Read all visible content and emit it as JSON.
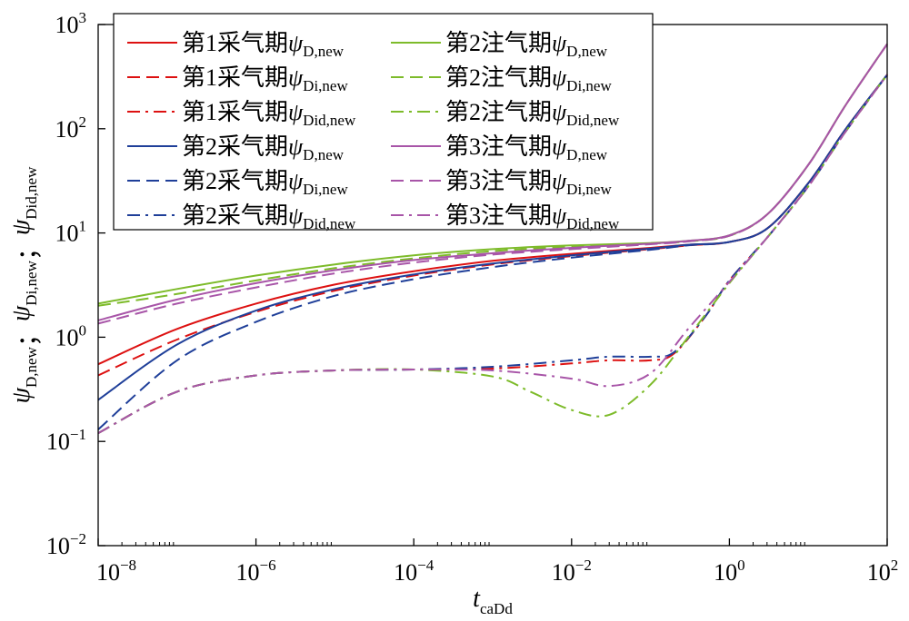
{
  "chart_data": {
    "type": "line",
    "x_scale": "log",
    "y_scale": "log",
    "xlim": [
      1e-08,
      100
    ],
    "ylim": [
      0.01,
      1000
    ],
    "xlabel": {
      "italic": "t",
      "sub": "caDd"
    },
    "ylabel": [
      {
        "italic": "ψ",
        "sub": "D,new"
      },
      {
        "sep": "；"
      },
      {
        "italic": "ψ",
        "sub": "Di,new"
      },
      {
        "sep": "；"
      },
      {
        "italic": "ψ",
        "sub": "Did,new"
      }
    ],
    "x_ticks": [
      {
        "base": "10",
        "exp": "−8"
      },
      {
        "base": "10",
        "exp": "−6"
      },
      {
        "base": "10",
        "exp": "−4"
      },
      {
        "base": "10",
        "exp": "−2"
      },
      {
        "base": "10",
        "exp": "0"
      },
      {
        "base": "10",
        "exp": "2"
      }
    ],
    "y_ticks": [
      {
        "base": "10",
        "exp": "−2"
      },
      {
        "base": "10",
        "exp": "−1"
      },
      {
        "base": "10",
        "exp": "0"
      },
      {
        "base": "10",
        "exp": "1"
      },
      {
        "base": "10",
        "exp": "2"
      },
      {
        "base": "10",
        "exp": "3"
      }
    ],
    "legend_position": "top-left",
    "grid": false,
    "series": [
      {
        "name": "第1采气期",
        "psi": "ψ",
        "sub": "D,new",
        "color": "#dd1111",
        "dash": "solid",
        "x": [
          1e-08,
          1e-07,
          1e-06,
          1e-05,
          0.0001,
          0.001,
          0.01,
          0.1,
          0.3,
          1,
          3,
          10,
          30,
          100
        ],
        "y": [
          0.55,
          1.2,
          2.1,
          3.2,
          4.3,
          5.4,
          6.3,
          7.2,
          7.7,
          8.2,
          11,
          30,
          100,
          330
        ]
      },
      {
        "name": "第1采气期",
        "psi": "ψ",
        "sub": "Di,new",
        "color": "#dd1111",
        "dash": "dash",
        "x": [
          1e-08,
          1e-07,
          1e-06,
          1e-05,
          0.0001,
          0.001,
          0.01,
          0.1,
          0.3,
          1,
          3,
          10,
          30,
          100
        ],
        "y": [
          0.43,
          0.95,
          1.75,
          2.8,
          3.9,
          5.0,
          6.0,
          7.0,
          7.6,
          8.2,
          11,
          30,
          100,
          330
        ]
      },
      {
        "name": "第1采气期",
        "psi": "ψ",
        "sub": "Did,new",
        "color": "#dd1111",
        "dash": "dashdot",
        "x": [
          1e-08,
          1e-07,
          1e-06,
          1e-05,
          0.0001,
          0.001,
          0.01,
          0.03,
          0.1,
          0.2,
          0.5,
          1,
          3,
          10,
          30,
          100
        ],
        "y": [
          0.12,
          0.3,
          0.43,
          0.48,
          0.49,
          0.5,
          0.56,
          0.6,
          0.6,
          0.7,
          1.6,
          3.5,
          9,
          28,
          95,
          330
        ]
      },
      {
        "name": "第2采气期",
        "psi": "ψ",
        "sub": "D,new",
        "color": "#1f3f99",
        "dash": "solid",
        "x": [
          1e-08,
          1e-07,
          1e-06,
          1e-05,
          0.0001,
          0.001,
          0.01,
          0.1,
          0.3,
          1,
          3,
          10,
          30,
          100
        ],
        "y": [
          0.25,
          0.85,
          1.8,
          2.9,
          4.0,
          5.1,
          6.1,
          7.1,
          7.7,
          8.2,
          11,
          30,
          100,
          330
        ]
      },
      {
        "name": "第2采气期",
        "psi": "ψ",
        "sub": "Di,new",
        "color": "#1f3f99",
        "dash": "dash",
        "x": [
          1e-08,
          1e-07,
          1e-06,
          1e-05,
          0.0001,
          0.001,
          0.01,
          0.1,
          0.3,
          1,
          3,
          10,
          30,
          100
        ],
        "y": [
          0.13,
          0.6,
          1.4,
          2.5,
          3.6,
          4.7,
          5.8,
          6.9,
          7.6,
          8.2,
          11,
          30,
          100,
          330
        ]
      },
      {
        "name": "第2采气期",
        "psi": "ψ",
        "sub": "Did,new",
        "color": "#1f3f99",
        "dash": "dashdot",
        "x": [
          1e-08,
          1e-07,
          1e-06,
          1e-05,
          0.0001,
          0.001,
          0.01,
          0.03,
          0.1,
          0.2,
          0.5,
          1,
          3,
          10,
          30,
          100
        ],
        "y": [
          0.12,
          0.3,
          0.43,
          0.48,
          0.49,
          0.52,
          0.6,
          0.65,
          0.65,
          0.72,
          1.6,
          3.5,
          9,
          28,
          95,
          330
        ]
      },
      {
        "name": "第2注气期",
        "psi": "ψ",
        "sub": "D,new",
        "color": "#7dbb2a",
        "dash": "solid",
        "x": [
          1e-08,
          1e-07,
          1e-06,
          1e-05,
          0.0001,
          0.001,
          0.01,
          0.1,
          0.3,
          1,
          3,
          10,
          30,
          100
        ],
        "y": [
          2.1,
          2.9,
          3.9,
          5.0,
          6.1,
          7.0,
          7.6,
          8.0,
          8.4,
          9.5,
          15,
          45,
          170,
          650
        ]
      },
      {
        "name": "第2注气期",
        "psi": "ψ",
        "sub": "Di,new",
        "color": "#7dbb2a",
        "dash": "dash",
        "x": [
          1e-08,
          1e-07,
          1e-06,
          1e-05,
          0.0001,
          0.001,
          0.01,
          0.1,
          0.3,
          1,
          3,
          10,
          30,
          100
        ],
        "y": [
          2.0,
          2.6,
          3.5,
          4.6,
          5.7,
          6.7,
          7.4,
          7.9,
          8.3,
          9.4,
          15,
          45,
          170,
          650
        ]
      },
      {
        "name": "第2注气期",
        "psi": "ψ",
        "sub": "Did,new",
        "color": "#7dbb2a",
        "dash": "dashdot",
        "x": [
          1e-08,
          1e-07,
          1e-06,
          1e-05,
          0.0001,
          0.001,
          0.003,
          0.01,
          0.03,
          0.1,
          0.3,
          1,
          3,
          10,
          30,
          100
        ],
        "y": [
          0.12,
          0.3,
          0.43,
          0.48,
          0.49,
          0.42,
          0.3,
          0.2,
          0.18,
          0.35,
          1.0,
          3.3,
          9,
          28,
          95,
          330
        ]
      },
      {
        "name": "第3注气期",
        "psi": "ψ",
        "sub": "D,new",
        "color": "#a855a8",
        "dash": "solid",
        "x": [
          1e-08,
          1e-07,
          1e-06,
          1e-05,
          0.0001,
          0.001,
          0.01,
          0.1,
          0.3,
          1,
          3,
          10,
          30,
          100
        ],
        "y": [
          1.45,
          2.3,
          3.3,
          4.4,
          5.5,
          6.4,
          7.2,
          7.9,
          8.4,
          9.5,
          15,
          45,
          170,
          650
        ]
      },
      {
        "name": "第3注气期",
        "psi": "ψ",
        "sub": "Di,new",
        "color": "#a855a8",
        "dash": "dash",
        "x": [
          1e-08,
          1e-07,
          1e-06,
          1e-05,
          0.0001,
          0.001,
          0.01,
          0.1,
          0.3,
          1,
          3,
          10,
          30,
          100
        ],
        "y": [
          1.35,
          2.1,
          3.0,
          4.1,
          5.2,
          6.2,
          7.0,
          7.8,
          8.3,
          9.4,
          15,
          45,
          170,
          650
        ]
      },
      {
        "name": "第3注气期",
        "psi": "ψ",
        "sub": "Did,new",
        "color": "#a855a8",
        "dash": "dashdot",
        "x": [
          1e-08,
          1e-07,
          1e-06,
          1e-05,
          0.0001,
          0.001,
          0.01,
          0.03,
          0.1,
          0.3,
          1,
          3,
          10,
          30,
          100
        ],
        "y": [
          0.12,
          0.3,
          0.43,
          0.48,
          0.49,
          0.48,
          0.4,
          0.34,
          0.45,
          1.2,
          3.4,
          9,
          28,
          95,
          330
        ]
      }
    ]
  }
}
